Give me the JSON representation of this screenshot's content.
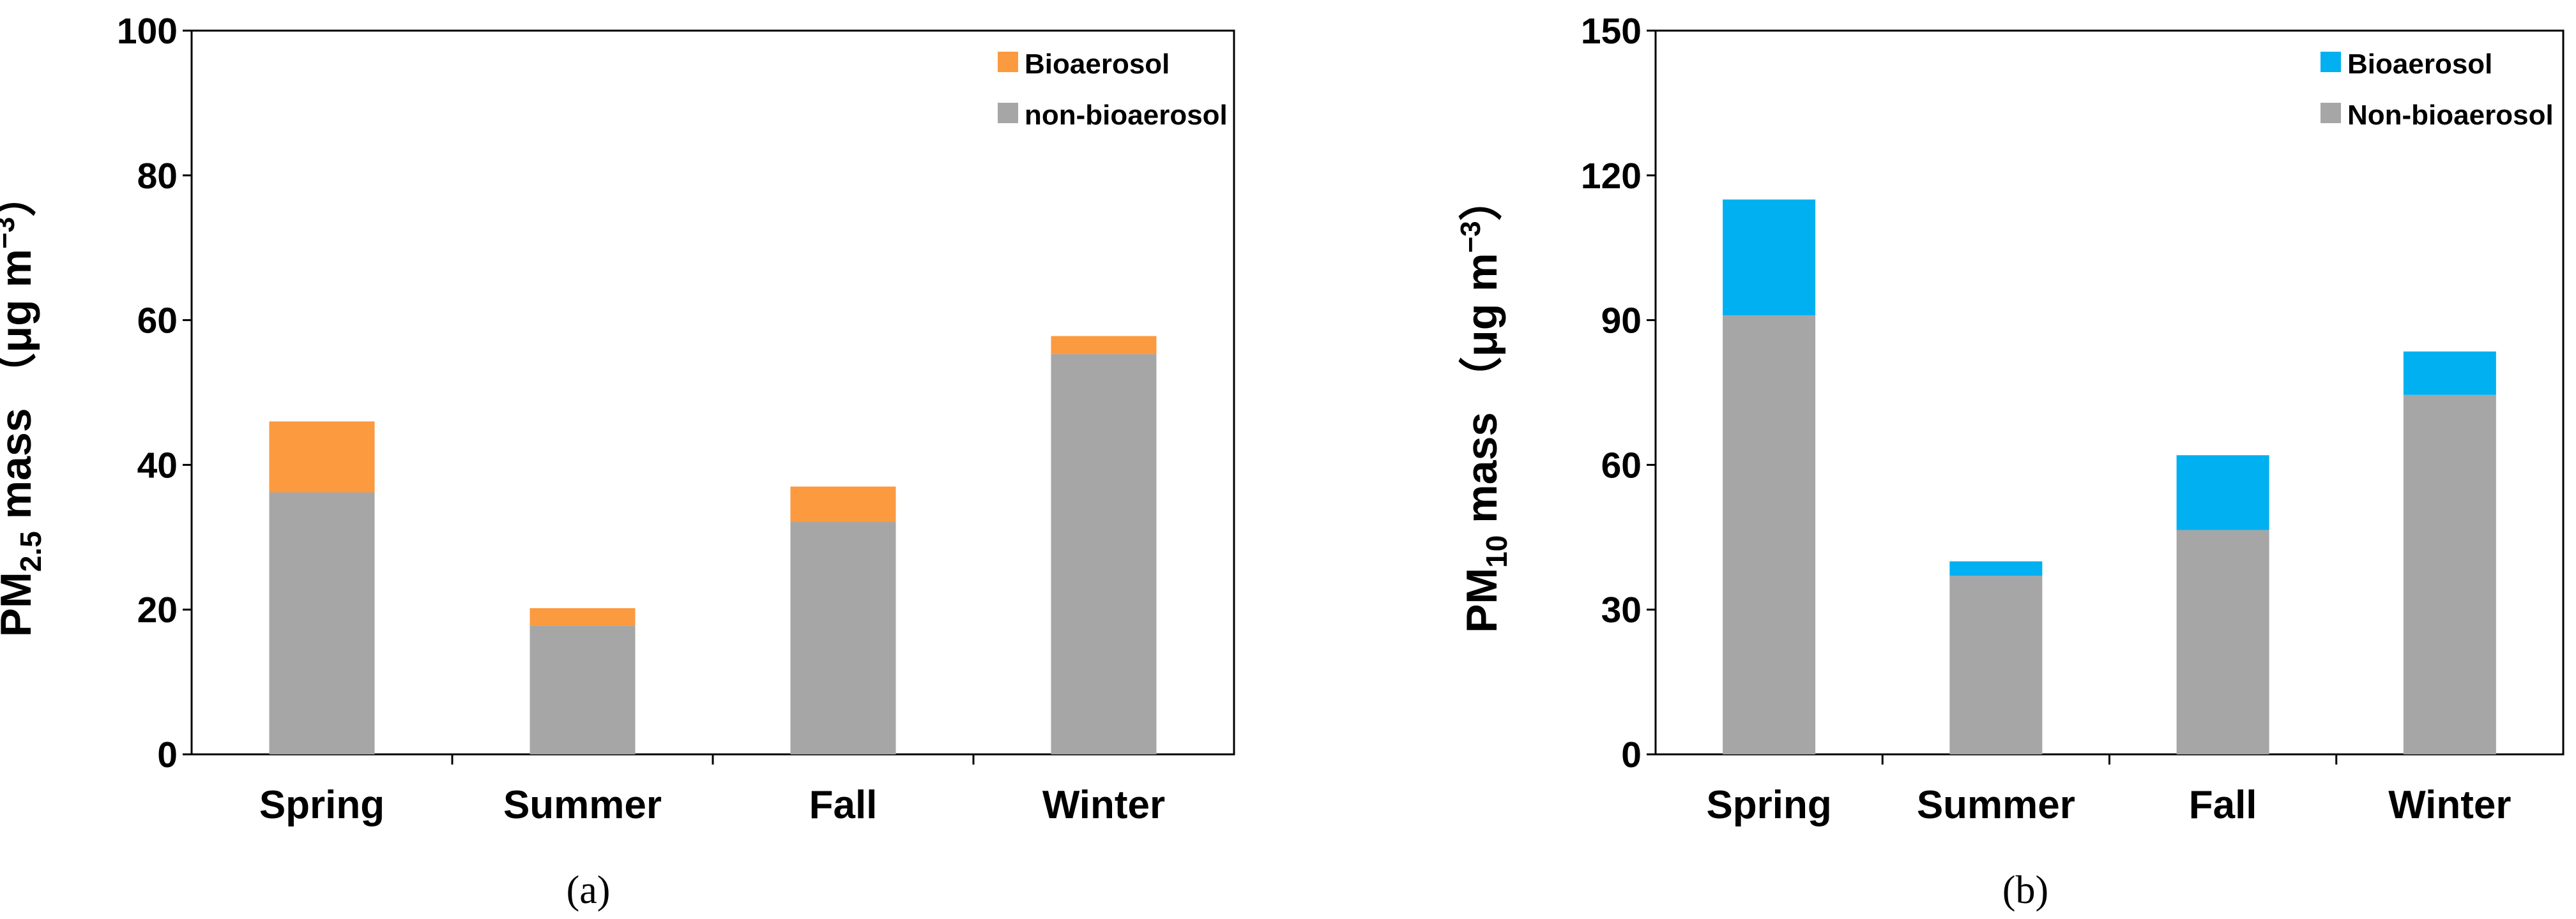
{
  "chart_data": [
    {
      "type": "bar",
      "stacked": true,
      "panel_label": "(a)",
      "categories": [
        "Spring",
        "Summer",
        "Fall",
        "Winter"
      ],
      "series": [
        {
          "name": "non-bioaerosol",
          "color": "#a6a6a6",
          "values": [
            36.2,
            17.8,
            32.1,
            55.3
          ]
        },
        {
          "name": "Bioaerosol",
          "color": "#fb9a3f",
          "values": [
            9.8,
            2.4,
            4.9,
            2.5
          ]
        }
      ],
      "legend_order": [
        1,
        0
      ],
      "ylabel": {
        "prefix": "PM",
        "sub": "2.5",
        "mid": " mass  （μg m",
        "sup": "−3",
        "suffix": "）"
      },
      "ylim": [
        0,
        100
      ],
      "yticks": [
        0,
        20,
        40,
        60,
        80,
        100
      ],
      "ytick_labels": [
        "0",
        "20",
        "40",
        "60",
        "80",
        "100"
      ],
      "legend_position": "top-right"
    },
    {
      "type": "bar",
      "stacked": true,
      "panel_label": "(b)",
      "categories": [
        "Spring",
        "Summer",
        "Fall",
        "Winter"
      ],
      "series": [
        {
          "name": "Non-bioaerosol",
          "color": "#a6a6a6",
          "values": [
            91,
            37,
            46.5,
            74.5
          ]
        },
        {
          "name": "Bioaerosol",
          "color": "#00b0f0",
          "values": [
            24,
            3,
            15.5,
            9
          ]
        }
      ],
      "legend_order": [
        1,
        0
      ],
      "ylabel": {
        "prefix": "PM",
        "sub": "10",
        "mid": " mass  （μg m",
        "sup": "−3",
        "suffix": "）"
      },
      "ylim": [
        0,
        150
      ],
      "yticks": [
        0,
        30,
        60,
        90,
        120,
        150
      ],
      "ytick_labels": [
        "0",
        "30",
        "60",
        "90",
        "120",
        "150"
      ],
      "legend_position": "top-right"
    }
  ]
}
